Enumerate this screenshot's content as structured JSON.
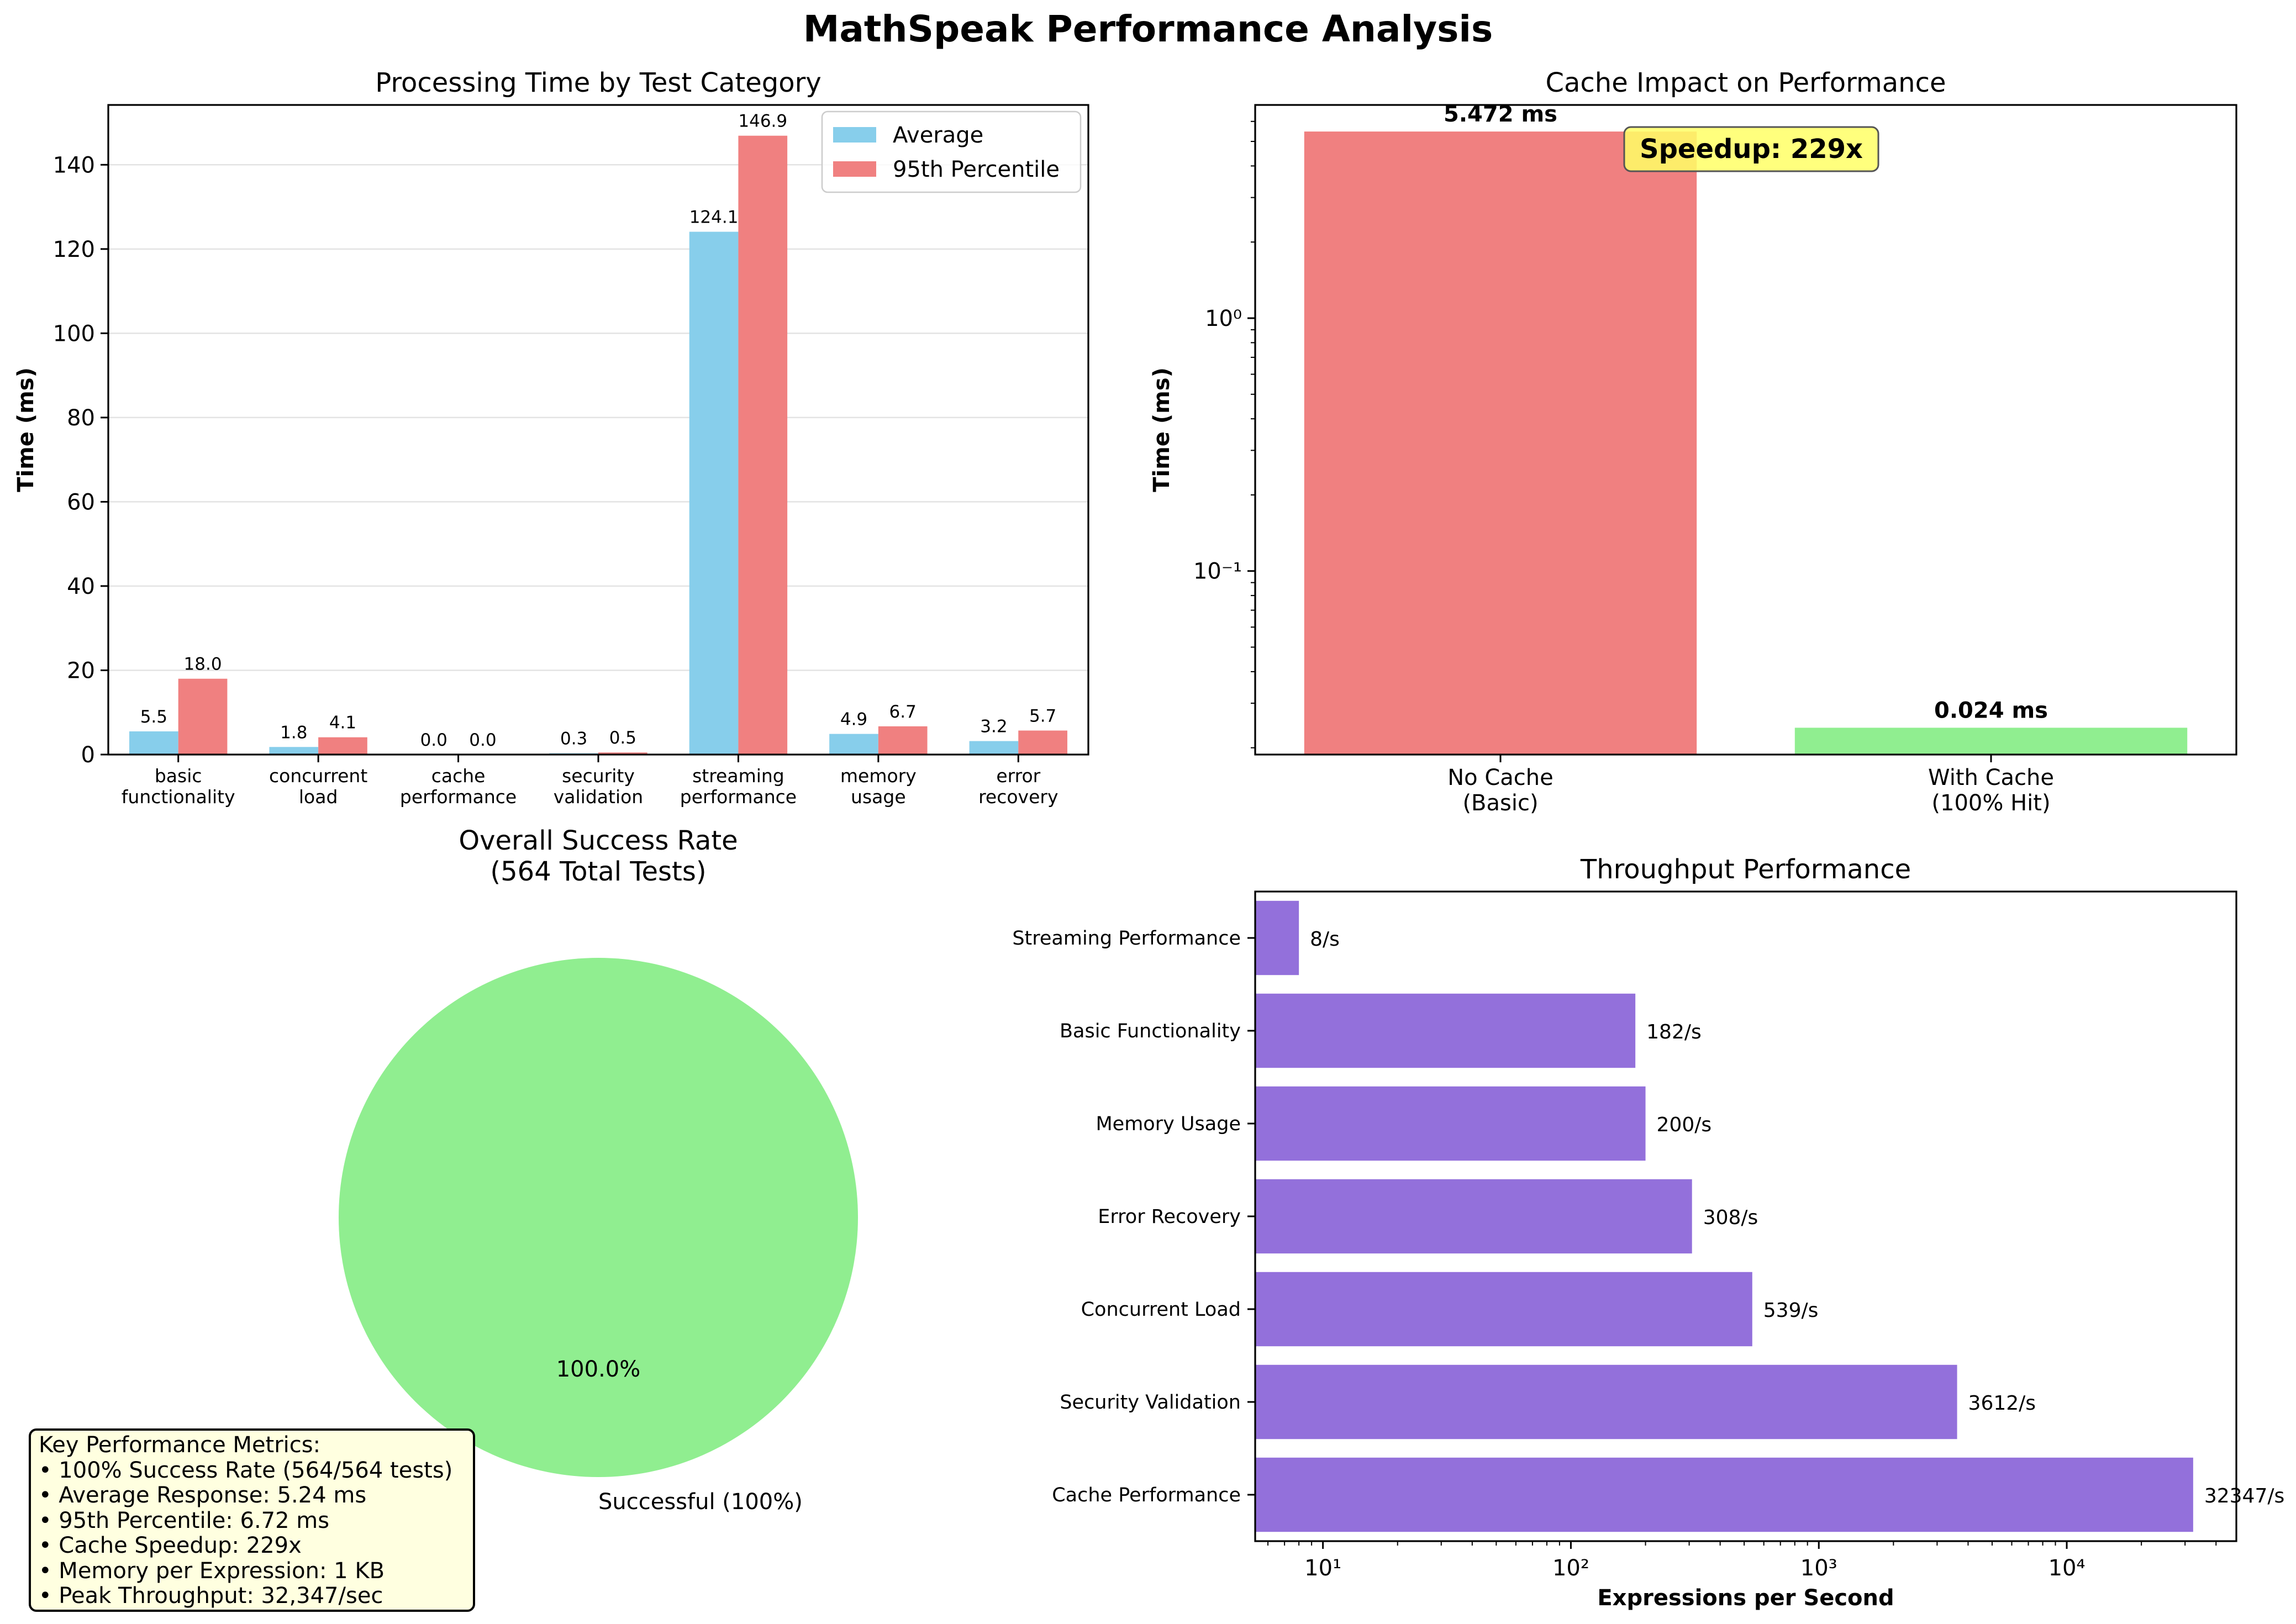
{
  "title": "MathSpeak Performance Analysis",
  "colors": {
    "average": "#87ceeb",
    "p95": "#f08080",
    "success": "#90ee90",
    "throughput": "#9370db",
    "speedup_box": "#ffff66",
    "metrics_box": "#ffffe0"
  },
  "chart_data": [
    {
      "type": "bar",
      "title": "Processing Time by Test Category",
      "ylabel": "Time (ms)",
      "xlabel": "",
      "categories": [
        "basic\nfunctionality",
        "concurrent\nload",
        "cache\nperformance",
        "security\nvalidation",
        "streaming\nperformance",
        "memory\nusage",
        "error\nrecovery"
      ],
      "series": [
        {
          "name": "Average",
          "values": [
            5.5,
            1.8,
            0.0,
            0.3,
            124.1,
            4.9,
            3.2
          ],
          "labels": [
            "5.5",
            "1.8",
            "0.0",
            "0.3",
            "124.1",
            "4.9",
            "3.2"
          ]
        },
        {
          "name": "95th Percentile",
          "values": [
            18.0,
            4.1,
            0.0,
            0.5,
            146.9,
            6.7,
            5.7
          ],
          "labels": [
            "18.0",
            "4.1",
            "0.0",
            "0.5",
            "146.9",
            "6.7",
            "5.7"
          ]
        }
      ],
      "ylim": [
        0,
        154.2
      ],
      "yticks": [
        0,
        20,
        40,
        60,
        80,
        100,
        120,
        140
      ],
      "grid": "y",
      "legend": "upper right"
    },
    {
      "type": "bar",
      "title": "Cache Impact on Performance",
      "ylabel": "Time (ms)",
      "xlabel": "",
      "yscale": "log",
      "categories": [
        "No Cache\n(Basic)",
        "With Cache\n(100% Hit)"
      ],
      "values": [
        5.472,
        0.024
      ],
      "labels": [
        "5.472 ms",
        "0.024 ms"
      ],
      "ylim": [
        0.0188,
        6.97
      ],
      "yticks": [
        {
          "value": 1,
          "label": "10⁰"
        },
        {
          "value": 0.1,
          "label": "10⁻¹"
        }
      ],
      "annotation": "Speedup: 229x"
    },
    {
      "type": "pie",
      "title": "Overall Success Rate\n(564 Total Tests)",
      "slices": [
        {
          "label": "Successful (100%)",
          "value": 100,
          "pct_label": "100.0%"
        }
      ]
    },
    {
      "type": "bar",
      "orientation": "horizontal",
      "title": "Throughput Performance",
      "xlabel": "Expressions per Second",
      "xscale": "log",
      "categories": [
        "Streaming Performance",
        "Basic Functionality",
        "Memory Usage",
        "Error Recovery",
        "Concurrent Load",
        "Security Validation",
        "Cache Performance"
      ],
      "values": [
        8,
        182,
        200,
        308,
        539,
        3612,
        32347
      ],
      "labels": [
        "8/s",
        "182/s",
        "200/s",
        "308/s",
        "539/s",
        "3612/s",
        "32347/s"
      ],
      "xlim": [
        5.33,
        48300
      ],
      "xticks": [
        {
          "value": 10,
          "label": "10¹"
        },
        {
          "value": 100,
          "label": "10²"
        },
        {
          "value": 1000,
          "label": "10³"
        },
        {
          "value": 10000,
          "label": "10⁴"
        }
      ]
    }
  ],
  "metrics_box": {
    "lines": [
      "Key Performance Metrics:",
      "• 100% Success Rate (564/564 tests)",
      "• Average Response: 5.24 ms",
      "• 95th Percentile: 6.72 ms",
      "• Cache Speedup: 229x",
      "• Memory per Expression: 1 KB",
      "• Peak Throughput: 32,347/sec"
    ]
  }
}
